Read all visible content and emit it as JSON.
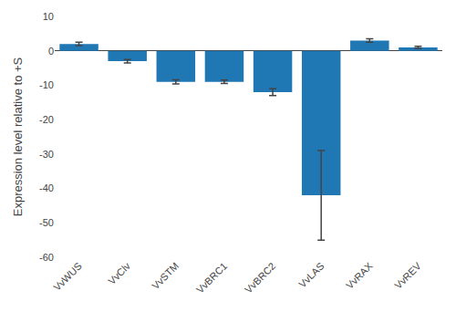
{
  "chart_data": {
    "type": "bar",
    "categories": [
      "VvWUS",
      "VvClv",
      "VvSTM",
      "VvBRC1",
      "VvBRC2",
      "VvLAS",
      "VvRAX",
      "VvREV"
    ],
    "values": [
      2.0,
      -3.0,
      -9.0,
      -9.0,
      -12.0,
      -42.0,
      3.0,
      1.0
    ],
    "errors": [
      0.5,
      0.5,
      0.6,
      0.5,
      1.0,
      13.0,
      0.5,
      0.3
    ],
    "ylabel": "Expression level relative to +S",
    "ylim": [
      -60,
      10
    ],
    "yticks": [
      10,
      0,
      -10,
      -20,
      -30,
      -40,
      -50,
      -60
    ],
    "grid": false
  }
}
